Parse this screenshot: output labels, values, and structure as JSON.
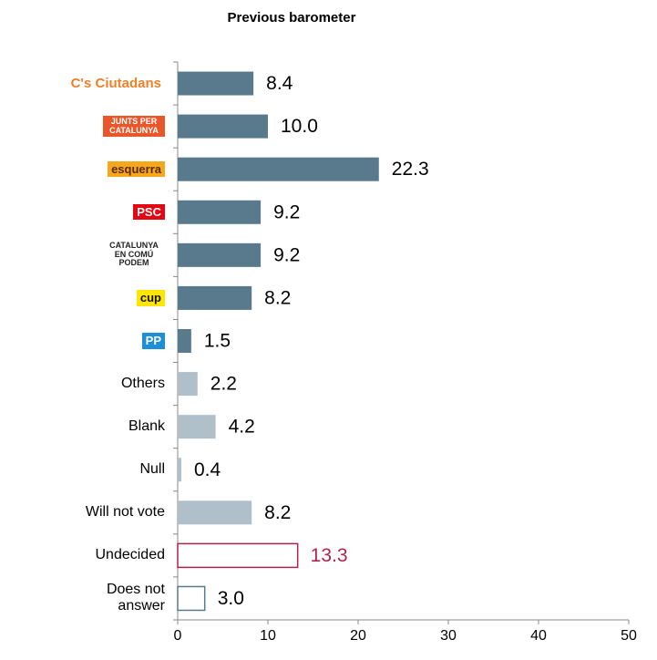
{
  "chart_data": {
    "type": "barh",
    "title": "Previous barometer",
    "categories": [
      "C's Ciutadans",
      "JUNTS PER CATALUNYA",
      "esquerra",
      "PSC",
      "CATALUNYA EN COMÚ PODEM",
      "cup",
      "PP",
      "Others",
      "Blank",
      "Null",
      "Will not vote",
      "Undecided",
      "Does not answer"
    ],
    "values": [
      8.4,
      10.0,
      22.3,
      9.2,
      9.2,
      8.2,
      1.5,
      2.2,
      4.2,
      0.4,
      8.2,
      13.3,
      3.0
    ],
    "value_labels": [
      "8.4",
      "10.0",
      "22.3",
      "9.2",
      "9.2",
      "8.2",
      "1.5",
      "2.2",
      "4.2",
      "0.4",
      "8.2",
      "13.3",
      "3.0"
    ],
    "bar_styles": [
      {
        "fill": "#587a8c",
        "stroke": "none",
        "label": "#000000"
      },
      {
        "fill": "#587a8c",
        "stroke": "none",
        "label": "#000000"
      },
      {
        "fill": "#587a8c",
        "stroke": "none",
        "label": "#000000"
      },
      {
        "fill": "#587a8c",
        "stroke": "none",
        "label": "#000000"
      },
      {
        "fill": "#587a8c",
        "stroke": "none",
        "label": "#000000"
      },
      {
        "fill": "#587a8c",
        "stroke": "none",
        "label": "#000000"
      },
      {
        "fill": "#587a8c",
        "stroke": "none",
        "label": "#000000"
      },
      {
        "fill": "#afc0ca",
        "stroke": "none",
        "label": "#000000"
      },
      {
        "fill": "#afc0ca",
        "stroke": "none",
        "label": "#000000"
      },
      {
        "fill": "#afc0ca",
        "stroke": "none",
        "label": "#000000"
      },
      {
        "fill": "#afc0ca",
        "stroke": "none",
        "label": "#000000"
      },
      {
        "fill": "#ffffff",
        "stroke": "#b0234c",
        "label": "#b0234c"
      },
      {
        "fill": "#ffffff",
        "stroke": "#587a8c",
        "label": "#000000"
      }
    ],
    "logo_styles": [
      {
        "color": "#f08028",
        "background": "transparent"
      },
      {
        "color": "#ffffff",
        "background": "#e8562a"
      },
      {
        "color": "#5a2a00",
        "background": "#f6a81c"
      },
      {
        "color": "#ffffff",
        "background": "#e30613"
      },
      {
        "color": "#222222",
        "background": "transparent"
      },
      {
        "color": "#111111",
        "background": "#ffe600"
      },
      {
        "color": "#ffffff",
        "background": "#1d8fd8"
      },
      null,
      null,
      null,
      null,
      null,
      null
    ],
    "xlim": [
      0,
      50
    ],
    "xticks": [
      0,
      10,
      20,
      30,
      40,
      50
    ]
  }
}
